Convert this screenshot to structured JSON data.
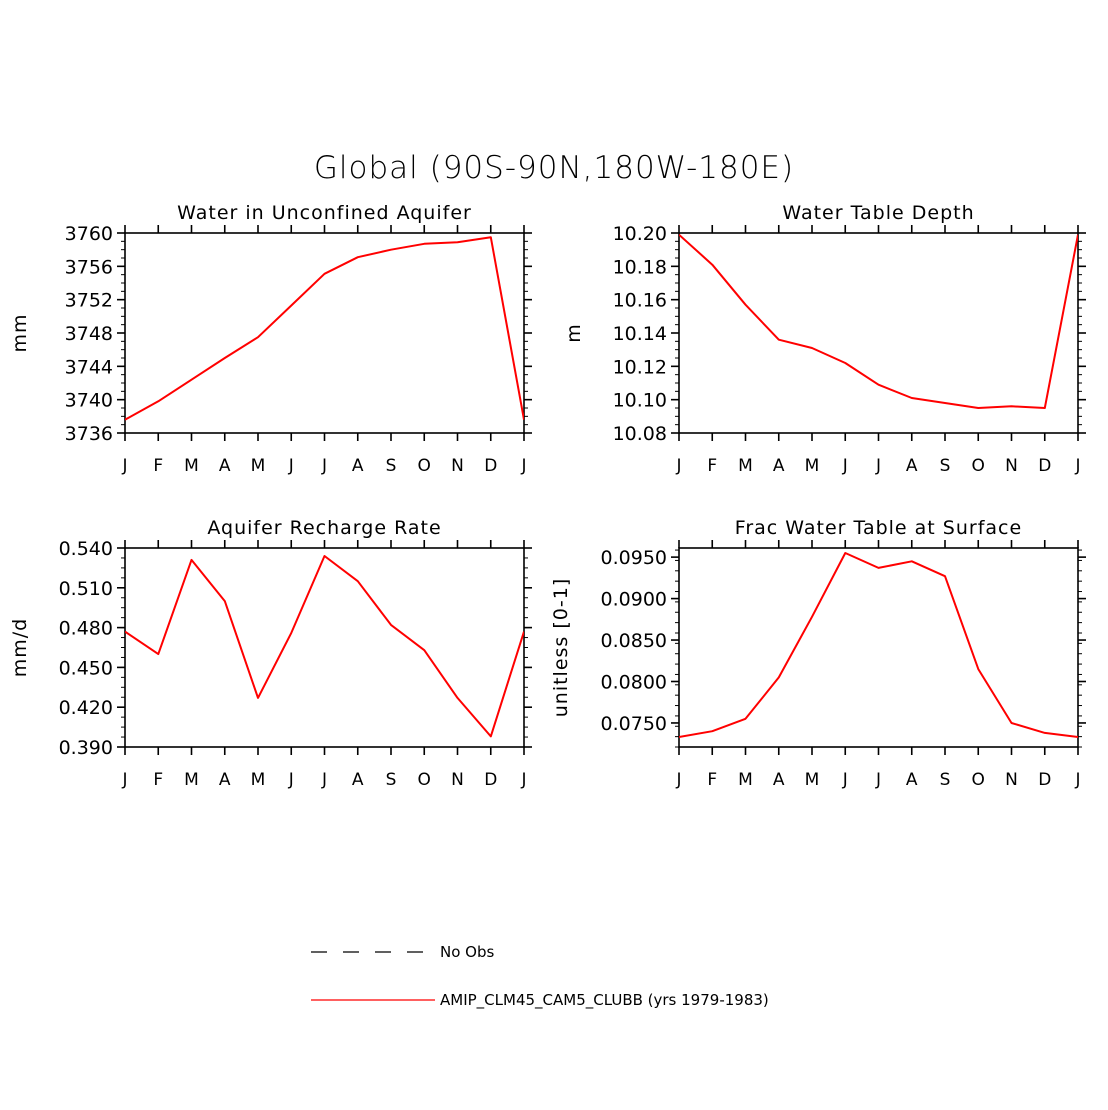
{
  "figure": {
    "title": "Global (90S-90N,180W-180E)"
  },
  "legend": {
    "items": [
      {
        "label": "No Obs",
        "style": "dashed",
        "color": "#000000"
      },
      {
        "label": "AMIP_CLM45_CAM5_CLUBB (yrs 1979-1983)",
        "style": "solid",
        "color": "#ff0000"
      }
    ]
  },
  "chart_data": [
    {
      "type": "line",
      "title": "Water in Unconfined Aquifer",
      "xlabel": "",
      "ylabel": "mm",
      "categories": [
        "J",
        "F",
        "M",
        "A",
        "M",
        "J",
        "J",
        "A",
        "S",
        "O",
        "N",
        "D",
        "J"
      ],
      "ylim": [
        3736,
        3760
      ],
      "yticks": [
        "3736",
        "3740",
        "3744",
        "3748",
        "3752",
        "3756",
        "3760"
      ],
      "grid": false,
      "series": [
        {
          "values": [
            3737.6,
            3739.8,
            3742.4,
            3745.0,
            3747.5,
            3751.3,
            3755.1,
            3757.1,
            3758.0,
            3758.7,
            3758.9,
            3759.5,
            3737.6
          ],
          "color": "#ff0000"
        }
      ]
    },
    {
      "type": "line",
      "title": "Water Table Depth",
      "xlabel": "",
      "ylabel": "m",
      "categories": [
        "J",
        "F",
        "M",
        "A",
        "M",
        "J",
        "J",
        "A",
        "S",
        "O",
        "N",
        "D",
        "J"
      ],
      "ylim": [
        10.08,
        10.2
      ],
      "yticks": [
        "10.08",
        "10.10",
        "10.12",
        "10.14",
        "10.16",
        "10.18",
        "10.20"
      ],
      "grid": false,
      "series": [
        {
          "values": [
            10.199,
            10.181,
            10.157,
            10.136,
            10.131,
            10.122,
            10.109,
            10.101,
            10.098,
            10.095,
            10.096,
            10.095,
            10.199
          ],
          "color": "#ff0000"
        }
      ]
    },
    {
      "type": "line",
      "title": "Aquifer Recharge Rate",
      "xlabel": "",
      "ylabel": "mm/d",
      "categories": [
        "J",
        "F",
        "M",
        "A",
        "M",
        "J",
        "J",
        "A",
        "S",
        "O",
        "N",
        "D",
        "J"
      ],
      "ylim": [
        0.39,
        0.54
      ],
      "yticks": [
        "0.390",
        "0.420",
        "0.450",
        "0.480",
        "0.510",
        "0.540"
      ],
      "grid": false,
      "series": [
        {
          "values": [
            0.477,
            0.46,
            0.531,
            0.5,
            0.427,
            0.476,
            0.534,
            0.515,
            0.482,
            0.463,
            0.427,
            0.398,
            0.477
          ],
          "color": "#ff0000"
        }
      ]
    },
    {
      "type": "line",
      "title": "Frac Water Table at Surface",
      "xlabel": "",
      "ylabel": "unitless [0-1]",
      "categories": [
        "J",
        "F",
        "M",
        "A",
        "M",
        "J",
        "J",
        "A",
        "S",
        "O",
        "N",
        "D",
        "J"
      ],
      "ylim": [
        0.0721,
        0.0961
      ],
      "yticks": [
        "0.0750",
        "0.0800",
        "0.0850",
        "0.0900",
        "0.0950"
      ],
      "grid": false,
      "series": [
        {
          "values": [
            0.0733,
            0.074,
            0.0755,
            0.0805,
            0.0878,
            0.0955,
            0.0937,
            0.0945,
            0.0927,
            0.0815,
            0.075,
            0.0738,
            0.0733
          ],
          "color": "#ff0000"
        }
      ]
    }
  ]
}
